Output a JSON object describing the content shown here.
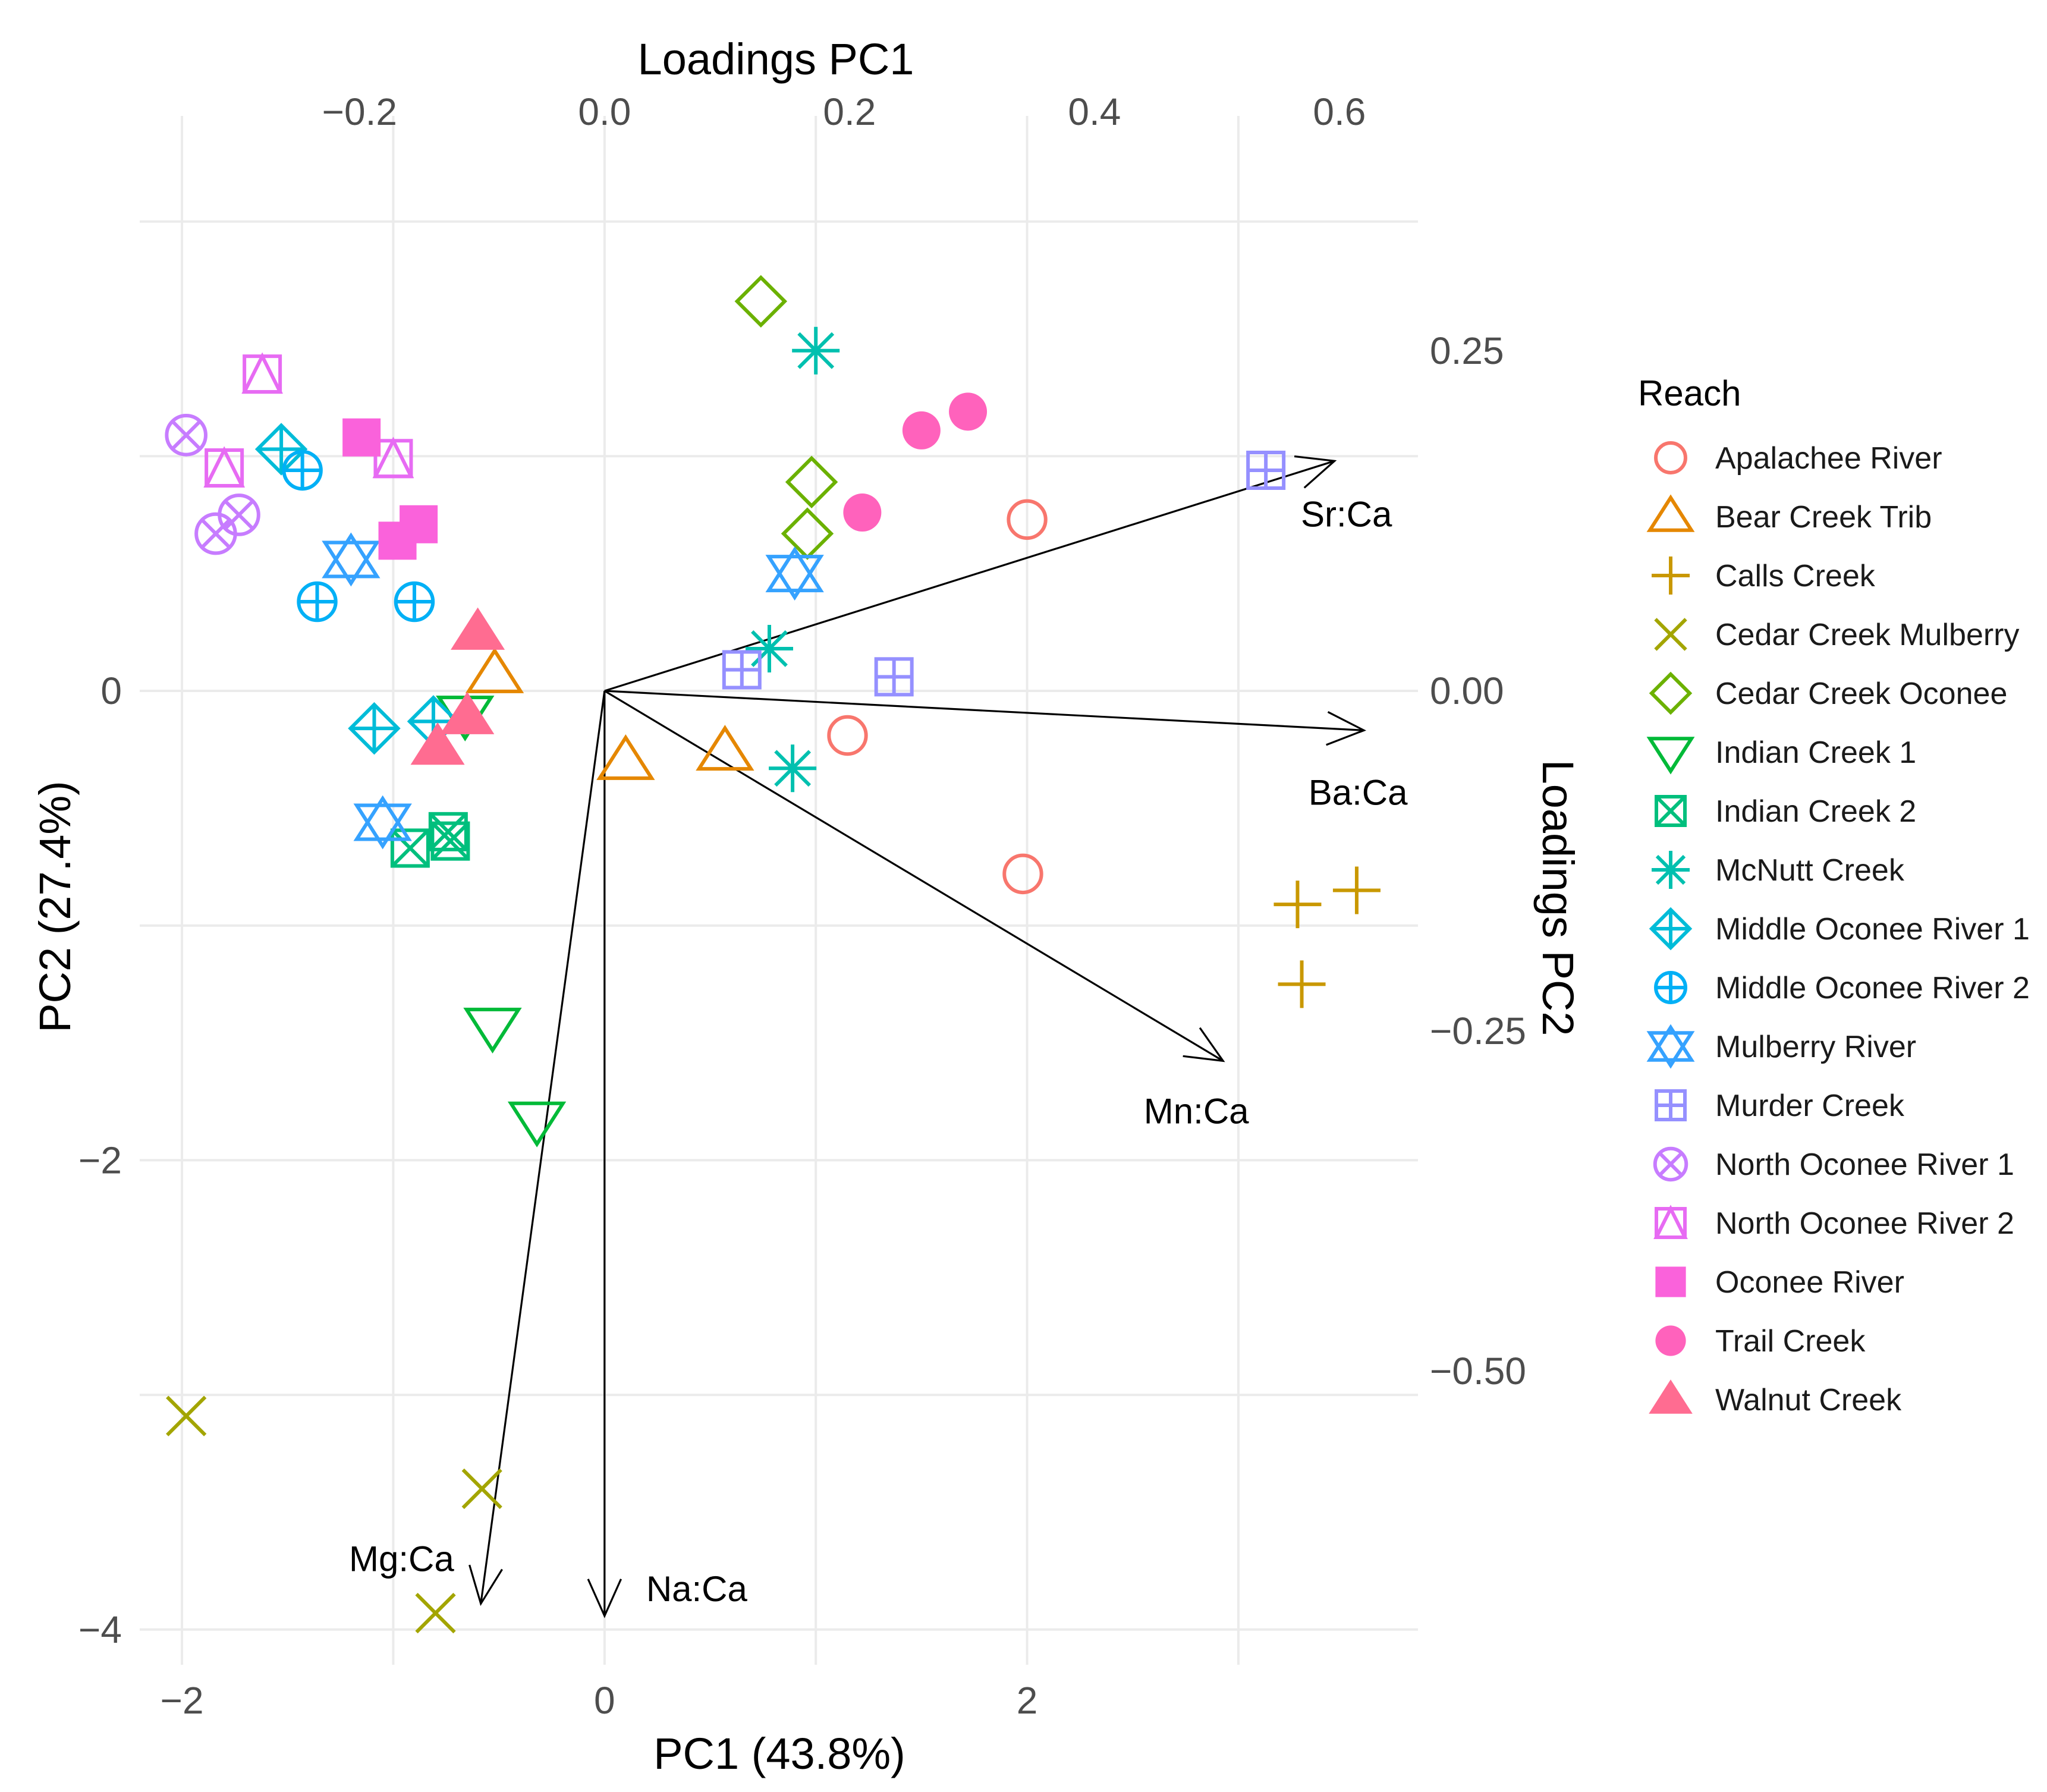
{
  "chart_data": {
    "type": "scatter",
    "subtype": "pca-biplot",
    "title": "",
    "xlabel": "PC1 (43.8%)",
    "ylabel": "PC2 (27.4%)",
    "top_axis_label": "Loadings PC1",
    "right_axis_label": "Loadings PC2",
    "xlim": [
      -2.2,
      3.85
    ],
    "ylim": [
      -4.15,
      2.45
    ],
    "x_ticks": [
      -2,
      0,
      2
    ],
    "x_tick_labels": [
      "−2",
      "0",
      "2"
    ],
    "y_ticks": [
      0,
      -2,
      -4
    ],
    "y_tick_labels": [
      "0",
      "−2",
      "−4"
    ],
    "loading_scale": 5.797,
    "top_ticks": [
      -0.2,
      0.0,
      0.2,
      0.4,
      0.6
    ],
    "top_tick_labels": [
      "−0.2",
      "0.0",
      "0.2",
      "0.4",
      "0.6"
    ],
    "right_ticks": [
      0.25,
      0.0,
      -0.25,
      -0.5
    ],
    "right_tick_labels": [
      "0.25",
      "0.00",
      "−0.25",
      "−0.50"
    ],
    "grid": true,
    "legend_title": "Reach",
    "legend_position": "right",
    "series": [
      {
        "name": "Apalachee River",
        "color": "#F8766D",
        "shape": "circle-open",
        "points": [
          [
            2.0,
            0.73
          ],
          [
            1.15,
            -0.19
          ],
          [
            1.98,
            -0.78
          ]
        ]
      },
      {
        "name": "Bear Creek Trib",
        "color": "#E58700",
        "shape": "triangle-open",
        "points": [
          [
            -0.52,
            0.07
          ],
          [
            0.1,
            -0.3
          ],
          [
            0.57,
            -0.26
          ]
        ]
      },
      {
        "name": "Calls Creek",
        "color": "#C99800",
        "shape": "plus",
        "points": [
          [
            3.28,
            -0.91
          ],
          [
            3.56,
            -0.85
          ],
          [
            3.3,
            -1.25
          ]
        ]
      },
      {
        "name": "Cedar Creek Mulberry",
        "color": "#A3A500",
        "shape": "x",
        "points": [
          [
            -1.98,
            -3.09
          ],
          [
            -0.58,
            -3.4
          ],
          [
            -0.8,
            -3.93
          ]
        ]
      },
      {
        "name": "Cedar Creek Oconee",
        "color": "#6BB100",
        "shape": "diamond-open",
        "points": [
          [
            0.74,
            1.66
          ],
          [
            0.98,
            0.89
          ],
          [
            0.96,
            0.67
          ]
        ]
      },
      {
        "name": "Indian Creek 1",
        "color": "#00BA38",
        "shape": "triangle-down-open",
        "points": [
          [
            -0.66,
            -0.1
          ],
          [
            -0.53,
            -1.43
          ],
          [
            -0.32,
            -1.83
          ]
        ]
      },
      {
        "name": "Indian Creek 2",
        "color": "#00BF7D",
        "shape": "square-cross",
        "points": [
          [
            -0.74,
            -0.6
          ],
          [
            -0.92,
            -0.67
          ],
          [
            -0.73,
            -0.64
          ]
        ]
      },
      {
        "name": "McNutt Creek",
        "color": "#00C0AF",
        "shape": "asterisk",
        "points": [
          [
            1.0,
            1.45
          ],
          [
            0.78,
            0.18
          ],
          [
            0.89,
            -0.33
          ]
        ]
      },
      {
        "name": "Middle Oconee River 1",
        "color": "#00BCD8",
        "shape": "diamond-plus",
        "points": [
          [
            -1.53,
            1.03
          ],
          [
            -1.09,
            -0.16
          ],
          [
            -0.81,
            -0.13
          ]
        ]
      },
      {
        "name": "Middle Oconee River 2",
        "color": "#00B0F6",
        "shape": "circle-plus",
        "points": [
          [
            -1.43,
            0.94
          ],
          [
            -1.36,
            0.38
          ],
          [
            -0.9,
            0.38
          ]
        ]
      },
      {
        "name": "Mulberry River",
        "color": "#35A2FF",
        "shape": "star-david",
        "points": [
          [
            -1.2,
            0.56
          ],
          [
            0.9,
            0.5
          ],
          [
            -1.05,
            -0.56
          ]
        ]
      },
      {
        "name": "Murder Creek",
        "color": "#9590FF",
        "shape": "square-plus",
        "points": [
          [
            3.13,
            0.94
          ],
          [
            0.65,
            0.09
          ],
          [
            1.37,
            0.06
          ]
        ]
      },
      {
        "name": "North Oconee River 1",
        "color": "#C77CFF",
        "shape": "circle-x",
        "points": [
          [
            -1.98,
            1.09
          ],
          [
            -1.73,
            0.75
          ],
          [
            -1.84,
            0.67
          ]
        ]
      },
      {
        "name": "North Oconee River 2",
        "color": "#E76BF3",
        "shape": "square-triangle",
        "points": [
          [
            -1.62,
            1.35
          ],
          [
            -1.8,
            0.95
          ],
          [
            -1.0,
            0.99
          ]
        ]
      },
      {
        "name": "Oconee River",
        "color": "#FA62DB",
        "shape": "square-filled",
        "points": [
          [
            -1.15,
            1.08
          ],
          [
            -0.98,
            0.64
          ],
          [
            -0.88,
            0.71
          ]
        ]
      },
      {
        "name": "Trail Creek",
        "color": "#FF62BC",
        "shape": "circle-filled",
        "points": [
          [
            1.5,
            1.11
          ],
          [
            1.72,
            1.19
          ],
          [
            1.22,
            0.76
          ]
        ]
      },
      {
        "name": "Walnut Creek",
        "color": "#FF6C91",
        "shape": "triangle-filled",
        "points": [
          [
            -0.6,
            0.25
          ],
          [
            -0.79,
            -0.24
          ],
          [
            -0.65,
            -0.11
          ]
        ]
      }
    ],
    "loadings": [
      {
        "name": "Sr:Ca",
        "pc1": 0.596,
        "pc2": 0.169
      },
      {
        "name": "Ba:Ca",
        "pc1": 0.62,
        "pc2": -0.029
      },
      {
        "name": "Mn:Ca",
        "pc1": 0.505,
        "pc2": -0.272
      },
      {
        "name": "Mg:Ca",
        "pc1": -0.101,
        "pc2": -0.671
      },
      {
        "name": "Na:Ca",
        "pc1": 0.0,
        "pc2": -0.68
      }
    ]
  }
}
